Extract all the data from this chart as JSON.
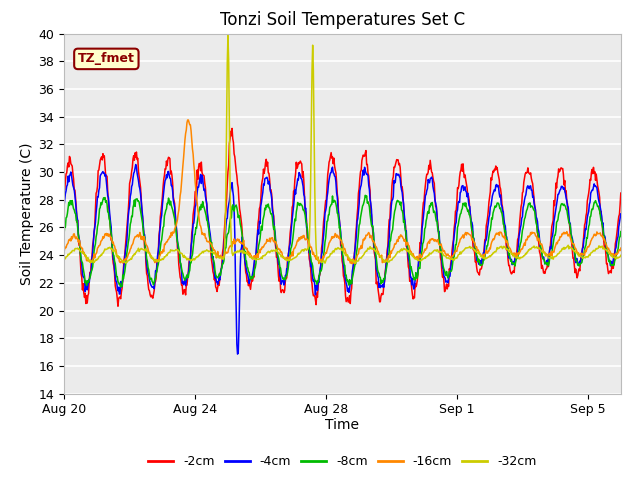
{
  "title": "Tonzi Soil Temperatures Set C",
  "xlabel": "Time",
  "ylabel": "Soil Temperature (C)",
  "ylim": [
    14,
    40
  ],
  "yticks": [
    14,
    16,
    18,
    20,
    22,
    24,
    26,
    28,
    30,
    32,
    34,
    36,
    38,
    40
  ],
  "annotation_text": "TZ_fmet",
  "annotation_color": "#8B0000",
  "annotation_bg": "#FFFFCC",
  "annotation_border": "#8B0000",
  "colors": {
    "-2cm": "#FF0000",
    "-4cm": "#0000FF",
    "-8cm": "#00BB00",
    "-16cm": "#FF8800",
    "-32cm": "#CCCC00"
  },
  "legend_labels": [
    "-2cm",
    "-4cm",
    "-8cm",
    "-16cm",
    "-32cm"
  ],
  "plot_bg": "#EBEBEB",
  "grid_color": "#FFFFFF",
  "title_fontsize": 12,
  "axis_label_fontsize": 10,
  "tick_fontsize": 9
}
